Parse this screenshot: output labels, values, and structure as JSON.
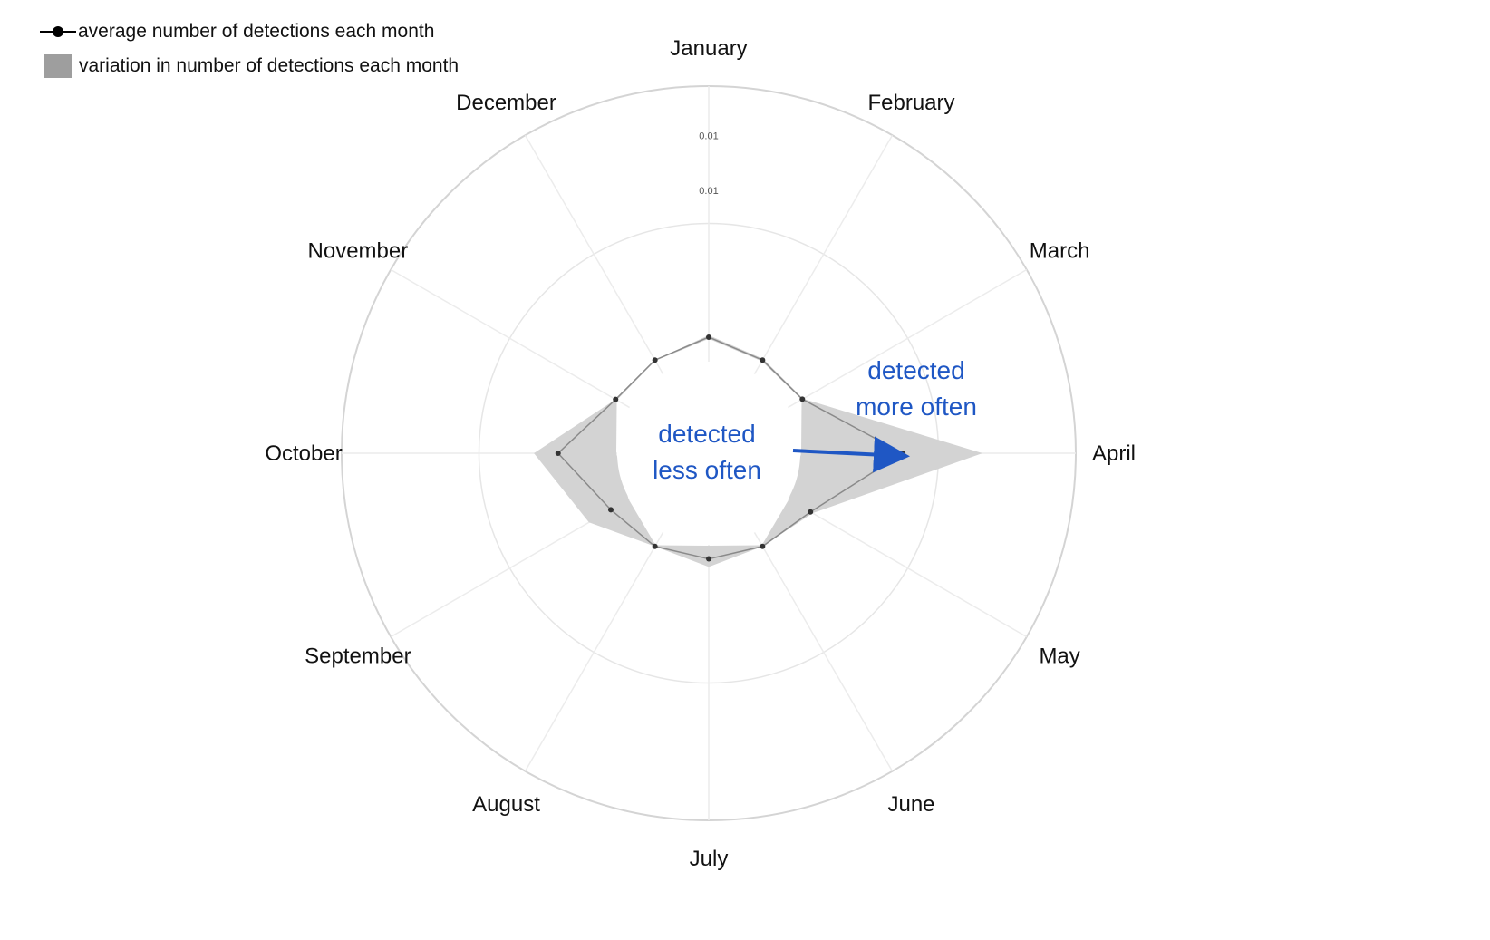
{
  "legend": {
    "line_label": "average number of detections each month",
    "band_label": "variation in number of detections each month"
  },
  "chart_data": {
    "type": "radar",
    "categories": [
      "January",
      "February",
      "March",
      "April",
      "May",
      "June",
      "July",
      "August",
      "September",
      "October",
      "November",
      "December"
    ],
    "radial_range": [
      0,
      1
    ],
    "radial_tick_labels": [
      "0.01",
      "0.01"
    ],
    "radial_tick_positions": [
      0.61,
      0.81
    ],
    "grid": true,
    "series": [
      {
        "name": "average number of detections each month",
        "values": [
          0.086,
          0.055,
          0.057,
          0.37,
          0.091,
          0.055,
          0.048,
          0.055,
          0.075,
          0.212,
          0.055,
          0.055
        ]
      },
      {
        "name": "variation in number of detections each month",
        "kind": "band",
        "upper": [
          0.093,
          0.06,
          0.06,
          0.66,
          0.1,
          0.055,
          0.077,
          0.055,
          0.167,
          0.3,
          0.055,
          0.055
        ],
        "lower": [
          0.08,
          0.05,
          0.054,
          0.0,
          0.0,
          0.05,
          0.0,
          0.05,
          0.0,
          0.0,
          0.05,
          0.052
        ]
      }
    ],
    "annotations": [
      {
        "text_lines": [
          "detected",
          "less often"
        ],
        "color": "#1f57c4"
      },
      {
        "text_lines": [
          "detected",
          "more often"
        ],
        "color": "#1f57c4"
      }
    ]
  }
}
